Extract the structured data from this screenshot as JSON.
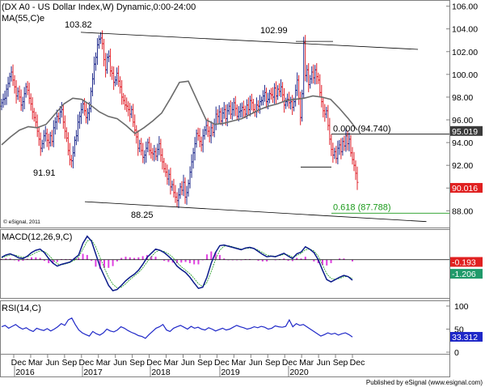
{
  "header": {
    "title": "(DX A0 - US Dollar Index,W) Dynamic,0:00-24:00",
    "indicator": "MA(55,C)e"
  },
  "copyright": "© eSignal, 2011",
  "footer": "Published by eSignal (www.esignal.com)",
  "colors": {
    "up_bar": "#1f2a8c",
    "down_bar": "#e0202a",
    "ma": "#6b6b6b",
    "macd_line": "#0a1a8a",
    "macd_hist": "#e040e0",
    "rsi_line": "#1f28c8",
    "fib_green": "#1a9a1a",
    "last_price_bg": "#e02020",
    "macd_box": "#1f9a6a",
    "rsi_box": "#1f28c8"
  },
  "chart_data": [
    {
      "type": "line",
      "panel": "price",
      "series_kind": "ohlc-bars",
      "x_axis": {
        "tick_labels": [
          "Dec",
          "Mar",
          "Jun",
          "Sep",
          "Dec",
          "Mar",
          "Jun",
          "Sep",
          "Dec",
          "Mar",
          "Jun",
          "Sep",
          "Dec",
          "Mar",
          "Jun",
          "Sep",
          "Dec",
          "Mar",
          "Jun",
          "Sep",
          "Dec"
        ],
        "year_labels": [
          "2016",
          "2017",
          "2018",
          "2019",
          "2020"
        ],
        "range": [
          "2015-11",
          "2020-12"
        ]
      },
      "y_axis": {
        "ticks": [
          "106.00",
          "104.00",
          "102.00",
          "100.00",
          "98.00",
          "96.00",
          "94.00",
          "92.00",
          "90.00",
          "88.00"
        ],
        "range": [
          86.6,
          106.4
        ]
      },
      "series": [
        {
          "name": "DX A0",
          "values": [
            97.5,
            97.8,
            97.9,
            98.7,
            99.2,
            99.8,
            100.2,
            99.5,
            98.9,
            98.1,
            98.5,
            98.0,
            97.3,
            97.6,
            98.3,
            98.9,
            98.6,
            97.9,
            97.4,
            96.7,
            96.2,
            95.8,
            95.0,
            94.3,
            93.5,
            93.9,
            94.6,
            94.8,
            94.2,
            94.0,
            94.6,
            94.1,
            95.3,
            95.8,
            96.3,
            96.1,
            96.7,
            96.9,
            95.8,
            95.0,
            94.4,
            93.3,
            92.5,
            92.4,
            93.1,
            94.2,
            94.6,
            95.8,
            96.3,
            96.9,
            97.4,
            96.8,
            96.2,
            96.6,
            97.0,
            98.5,
            99.6,
            100.9,
            101.5,
            102.6,
            103.1,
            103.2,
            102.7,
            101.3,
            100.4,
            101.5,
            101.6,
            100.3,
            100.1,
            99.3,
            99.5,
            100.1,
            99.4,
            98.9,
            98.0,
            97.7,
            97.3,
            97.2,
            96.9,
            96.5,
            96.9,
            95.8,
            95.1,
            94.5,
            93.5,
            93.9,
            93.3,
            92.7,
            92.9,
            93.5,
            94.0,
            93.3,
            93.1,
            93.0,
            93.2,
            92.8,
            93.4,
            93.9,
            92.9,
            92.3,
            91.7,
            91.4,
            90.8,
            91.2,
            90.1,
            90.3,
            89.6,
            89.2,
            88.9,
            89.4,
            90.1,
            89.8,
            90.5,
            89.2,
            89.6,
            90.4,
            91.4,
            92.3,
            93.1,
            93.9,
            94.8,
            94.6,
            94.1,
            93.8,
            94.6,
            95.1,
            95.5,
            95.0,
            94.6,
            95.3,
            94.9,
            95.6,
            96.5,
            96.3,
            96.7,
            95.9,
            96.6,
            96.9,
            96.1,
            96.8,
            97.2,
            96.5,
            96.9,
            97.5,
            97.0,
            96.3,
            96.7,
            96.8,
            97.1,
            96.9,
            96.5,
            97.3,
            96.9,
            97.7,
            97.5,
            96.9,
            96.7,
            97.3,
            97.2,
            97.6,
            97.7,
            98.1,
            98.4,
            97.6,
            97.8,
            98.3,
            98.2,
            98.0,
            98.8,
            98.1,
            98.7,
            98.5,
            98.9,
            98.2,
            97.3,
            97.6,
            97.8,
            97.5,
            97.6,
            97.1,
            97.6,
            98.6,
            99.5,
            97.9,
            96.2,
            98.3,
            102.8,
            99.9,
            100.4,
            99.1,
            99.6,
            100.2,
            99.7,
            100.4,
            99.8,
            99.5,
            98.4,
            97.6,
            96.8,
            96.5,
            96.8,
            95.5,
            94.3,
            93.4,
            92.9,
            93.2,
            92.6,
            93.5,
            93.8,
            93.2,
            94.1,
            93.7,
            94.6,
            93.9,
            94.3,
            93.1,
            92.5,
            92.0,
            91.3,
            90.5
          ]
        },
        {
          "name": "MA(55,C)e",
          "values": [
            93.8,
            94.5,
            95.1,
            95.4,
            95.3,
            95.6,
            96.5,
            97.4,
            97.9,
            97.8,
            97.3,
            96.7,
            96.3,
            96.1,
            95.5,
            94.8,
            95.3,
            95.9,
            96.6,
            97.9,
            99.3,
            99.4,
            97.7,
            96.0,
            95.6,
            95.7,
            95.9,
            96.1,
            96.5,
            96.9,
            97.2,
            97.4,
            97.7,
            97.8,
            97.9,
            98.1,
            98.0,
            97.8,
            97.0,
            96.1,
            95.1
          ]
        }
      ],
      "annotations": [
        {
          "text": "103.82",
          "kind": "swing-high"
        },
        {
          "text": "102.99",
          "kind": "swing-high"
        },
        {
          "text": "91.91",
          "kind": "swing-low"
        },
        {
          "text": "88.25",
          "kind": "swing-low"
        },
        {
          "text": "0.000 (94.740)",
          "kind": "fib-level",
          "value": 94.74
        },
        {
          "text": "0.618 (87.788)",
          "kind": "fib-level",
          "value": 87.788
        }
      ],
      "trendlines": [
        {
          "name": "upper-channel",
          "from": [
            103.7,
            100
          ],
          "to": [
            102.2,
            245
          ]
        },
        {
          "name": "lower-channel",
          "from": [
            88.8,
            105
          ],
          "to": [
            87.05,
            250
          ]
        }
      ],
      "price_boxes": [
        {
          "text": "95.019",
          "value": 95.019,
          "style": "ma"
        },
        {
          "text": "90.016",
          "value": 90.016,
          "style": "last"
        }
      ]
    },
    {
      "type": "line",
      "panel": "macd",
      "title": "MACD(12,26,9,C)",
      "y_range": [
        -3.2,
        2.4
      ],
      "series": [
        {
          "name": "MACD",
          "values": [
            0.2,
            0.4,
            0.5,
            0.35,
            0.15,
            0.1,
            0.3,
            0.6,
            0.8,
            0.9,
            0.6,
            0.1,
            -0.3,
            -0.55,
            -0.4,
            -0.3,
            -0.2,
            0.1,
            0.4,
            1.4,
            2.0,
            1.6,
            0.5,
            -0.6,
            -1.4,
            -2.2,
            -2.65,
            -2.55,
            -2.2,
            -1.8,
            -1.5,
            -1.25,
            -0.9,
            -0.4,
            0.2,
            0.55,
            0.9,
            0.8,
            0.6,
            0.3,
            -0.05,
            -0.55,
            -0.85,
            -1.1,
            -1.5,
            -2.0,
            -2.45,
            -2.35,
            -1.5,
            -0.3,
            0.6,
            1.2,
            1.25,
            1.15,
            1.05,
            0.95,
            0.85,
            1.0,
            1.05,
            0.95,
            0.7,
            0.45,
            0.25,
            0.3,
            0.25,
            0.4,
            0.55,
            0.3,
            0.1,
            0.5,
            0.65,
            1.1,
            0.9,
            0.6,
            0.0,
            -0.9,
            -1.7,
            -1.9,
            -1.7,
            -1.5,
            -1.35,
            -1.45,
            -1.75
          ]
        },
        {
          "name": "Signal",
          "values": [
            0.15,
            0.3,
            0.4,
            0.4,
            0.3,
            0.2,
            0.22,
            0.4,
            0.6,
            0.75,
            0.7,
            0.4,
            0.0,
            -0.35,
            -0.45,
            -0.35,
            -0.25,
            -0.05,
            0.25,
            0.9,
            1.6,
            1.7,
            1.1,
            0.2,
            -0.7,
            -1.5,
            -2.1,
            -2.4,
            -2.35,
            -2.05,
            -1.7,
            -1.4,
            -1.1,
            -0.7,
            -0.2,
            0.25,
            0.65,
            0.8,
            0.7,
            0.5,
            0.2,
            -0.25,
            -0.6,
            -0.9,
            -1.2,
            -1.6,
            -2.05,
            -2.3,
            -1.95,
            -1.0,
            0.0,
            0.8,
            1.15,
            1.2,
            1.1,
            1.0,
            0.9,
            0.95,
            1.0,
            0.95,
            0.8,
            0.6,
            0.4,
            0.32,
            0.3,
            0.35,
            0.45,
            0.4,
            0.22,
            0.35,
            0.55,
            0.85,
            0.9,
            0.75,
            0.3,
            -0.45,
            -1.2,
            -1.6,
            -1.7,
            -1.6,
            -1.45,
            -1.45,
            -1.6
          ]
        },
        {
          "name": "Histogram",
          "values": [
            0.05,
            0.1,
            0.1,
            -0.05,
            -0.15,
            -0.1,
            0.08,
            0.2,
            0.2,
            0.15,
            -0.1,
            -0.3,
            -0.3,
            -0.2,
            0.05,
            0.05,
            0.05,
            0.15,
            0.15,
            0.5,
            0.4,
            -0.1,
            -0.6,
            -0.8,
            -0.7,
            -0.7,
            -0.55,
            -0.15,
            0.15,
            0.25,
            0.2,
            0.15,
            0.2,
            0.3,
            0.4,
            0.3,
            0.25,
            0.0,
            -0.1,
            -0.2,
            -0.25,
            -0.3,
            -0.25,
            -0.2,
            -0.3,
            -0.4,
            -0.4,
            -0.05,
            0.45,
            0.7,
            0.6,
            0.4,
            0.1,
            -0.05,
            -0.05,
            -0.05,
            -0.05,
            0.05,
            0.05,
            0.0,
            -0.1,
            -0.15,
            -0.15,
            -0.02,
            -0.05,
            0.05,
            0.1,
            -0.1,
            -0.12,
            0.15,
            0.1,
            0.25,
            0.0,
            -0.15,
            -0.3,
            -0.45,
            -0.5,
            -0.3,
            0.0,
            0.1,
            0.1,
            0.0,
            -0.15
          ]
        }
      ],
      "zero_line": true,
      "value_boxes": [
        {
          "text": "-0.193",
          "value": -0.193,
          "style": "hist"
        },
        {
          "text": "-1.206",
          "value": -1.206,
          "style": "macd"
        }
      ]
    },
    {
      "type": "line",
      "panel": "rsi",
      "title": "RSI(14,C)",
      "y_range": [
        0,
        100
      ],
      "ticks": [
        "100",
        "50",
        "0"
      ],
      "series": [
        {
          "name": "RSI",
          "values": [
            55,
            58,
            52,
            56,
            60,
            54,
            50,
            53,
            48,
            45,
            52,
            49,
            47,
            51,
            46,
            50,
            55,
            62,
            58,
            70,
            74,
            60,
            48,
            42,
            38,
            35,
            45,
            40,
            37,
            42,
            50,
            46,
            44,
            48,
            55,
            52,
            47,
            43,
            40,
            36,
            34,
            30,
            38,
            45,
            52,
            55,
            60,
            48,
            45,
            52,
            55,
            58,
            54,
            50,
            56,
            52,
            54,
            50,
            48,
            53,
            50,
            46,
            49,
            52,
            48,
            50,
            54,
            58,
            55,
            53,
            50,
            52,
            55,
            53,
            56,
            54,
            50,
            52,
            57,
            55,
            54,
            56,
            70,
            55,
            62,
            58,
            60,
            55,
            50,
            45,
            40,
            35,
            38,
            42,
            39,
            41,
            37,
            40,
            42,
            38,
            33
          ]
        }
      ],
      "value_boxes": [
        {
          "text": "33.312",
          "value": 33.312
        }
      ]
    }
  ]
}
